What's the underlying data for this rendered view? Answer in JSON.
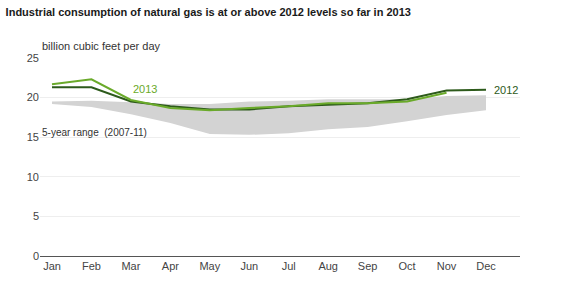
{
  "chart_data": {
    "type": "line",
    "title": "Industrial consumption of natural gas is at or above 2012 levels so far in 2013",
    "ylabel": "billion cubic feet per day",
    "categories": [
      "Jan",
      "Feb",
      "Mar",
      "Apr",
      "May",
      "Jun",
      "Jul",
      "Aug",
      "Sep",
      "Oct",
      "Nov",
      "Dec"
    ],
    "series": [
      {
        "name": "5-year range  (2007-11)",
        "type": "range",
        "color": "#d3d3d3",
        "lower": [
          19.2,
          18.8,
          17.9,
          16.8,
          15.4,
          15.3,
          15.5,
          16.0,
          16.3,
          17.0,
          17.8,
          18.4
        ],
        "upper": [
          19.5,
          19.6,
          19.4,
          19.2,
          19.2,
          19.5,
          19.6,
          19.8,
          19.8,
          19.8,
          20.2,
          20.3
        ]
      },
      {
        "name": "2012",
        "type": "line",
        "color": "#2d5a1b",
        "values": [
          21.3,
          21.3,
          19.5,
          18.9,
          18.5,
          18.5,
          18.9,
          19.1,
          19.3,
          19.8,
          20.9,
          21.0
        ]
      },
      {
        "name": "2013",
        "type": "line",
        "color": "#6aaa2a",
        "values": [
          21.7,
          22.3,
          19.7,
          18.7,
          18.4,
          18.7,
          18.9,
          19.3,
          19.3,
          19.5,
          20.6,
          null
        ]
      }
    ],
    "ylim": [
      0,
      25
    ],
    "yticks": [
      0,
      5,
      10,
      15,
      20,
      25
    ],
    "grid": true
  }
}
